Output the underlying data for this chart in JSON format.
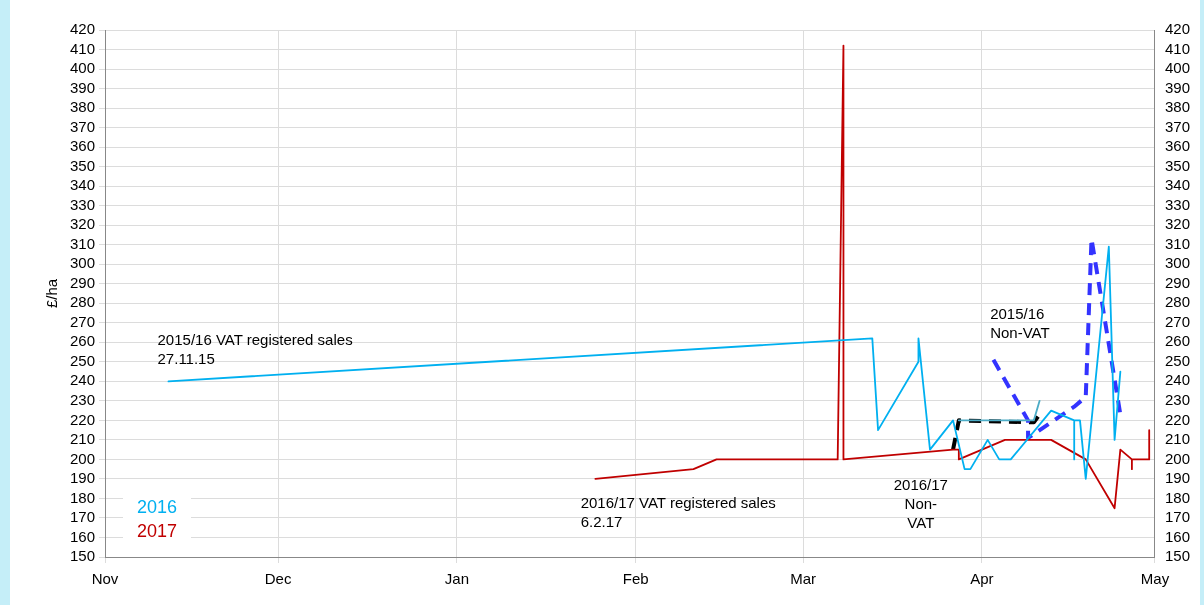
{
  "chart_data": {
    "type": "line",
    "ylabel": "£/ha",
    "xlim": [
      "2015-11-01",
      "2016-05-01"
    ],
    "xticks": [
      {
        "value": "2015-11-01",
        "label": "Nov"
      },
      {
        "value": "2015-12-01",
        "label": "Dec"
      },
      {
        "value": "2016-01-01",
        "label": "Jan"
      },
      {
        "value": "2016-02-01",
        "label": "Feb"
      },
      {
        "value": "2016-03-01",
        "label": "Mar"
      },
      {
        "value": "2016-04-01",
        "label": "Apr"
      },
      {
        "value": "2016-05-01",
        "label": "May"
      }
    ],
    "ylim": [
      150,
      420
    ],
    "yticks": [
      150,
      160,
      170,
      180,
      190,
      200,
      210,
      220,
      230,
      240,
      250,
      260,
      270,
      280,
      290,
      300,
      310,
      320,
      330,
      340,
      350,
      360,
      370,
      380,
      390,
      400,
      410,
      420
    ],
    "y2lim": [
      150,
      420
    ],
    "y2ticks": [
      150,
      160,
      170,
      180,
      190,
      200,
      210,
      220,
      230,
      240,
      250,
      260,
      270,
      280,
      290,
      300,
      310,
      320,
      330,
      340,
      350,
      360,
      370,
      380,
      390,
      400,
      410,
      420
    ],
    "grid": true,
    "legend": "bottom left",
    "marker": "none",
    "annotations": [
      "2015/16 VAT registered sales\n27.11.15",
      "2016/17 VAT registered sales\n6.2.17",
      "2015/16\nNon-VAT",
      "2016/17\nNon-\nVAT"
    ],
    "series": [
      {
        "name": "2016",
        "color": "#00b0f0",
        "line_style": "solid",
        "x": [
          "2015-11-12",
          "2016-03-13",
          "2016-03-14",
          "2016-03-21",
          "2016-03-21",
          "2016-03-23",
          "2016-03-27",
          "2016-03-29",
          "2016-03-30",
          "2016-04-02",
          "2016-04-04",
          "2016-04-06",
          "2016-04-13",
          "2016-04-17",
          "2016-04-17",
          "2016-04-17",
          "2016-04-18",
          "2016-04-19",
          "2016-04-23",
          "2016-04-24",
          "2016-04-25"
        ],
        "values": [
          240,
          262,
          215,
          250,
          262,
          205,
          220,
          195,
          195,
          210,
          200,
          200,
          225,
          220,
          200,
          220,
          220,
          190,
          309,
          210,
          245
        ]
      },
      {
        "name": "2017",
        "color": "#c00000",
        "line_style": "solid",
        "x": [
          "2016-01-25",
          "2016-02-11",
          "2016-02-15",
          "2016-03-07",
          "2016-03-08",
          "2016-03-08",
          "2016-03-27",
          "2016-03-28",
          "2016-03-28",
          "2016-04-05",
          "2016-04-13",
          "2016-04-19",
          "2016-04-24",
          "2016-04-25",
          "2016-04-27",
          "2016-04-27",
          "2016-04-27",
          "2016-04-30",
          "2016-04-30"
        ],
        "values": [
          190,
          195,
          200,
          200,
          412,
          200,
          205,
          205,
          200,
          210,
          210,
          200,
          175,
          205,
          200,
          195,
          200,
          200,
          215
        ]
      },
      {
        "color": "#4bacc6",
        "line_style": "solid",
        "x": [
          "2016-03-28",
          "2016-04-10",
          "2016-04-11"
        ],
        "values": [
          220,
          220,
          230
        ]
      },
      {
        "color": "#3333ff",
        "line_style": "dashed",
        "x": [
          "2016-04-03",
          "2016-04-09",
          "2016-04-09",
          "2016-04-17",
          "2016-04-19",
          "2016-04-20",
          "2016-04-25"
        ],
        "values": [
          251,
          220,
          211,
          227,
          232,
          313,
          223
        ]
      },
      {
        "color": "#000000",
        "line_style": "dashed",
        "x": [
          "2016-03-27",
          "2016-03-28",
          "2016-04-10",
          "2016-04-11"
        ],
        "values": [
          205,
          220,
          219,
          223
        ]
      }
    ]
  }
}
